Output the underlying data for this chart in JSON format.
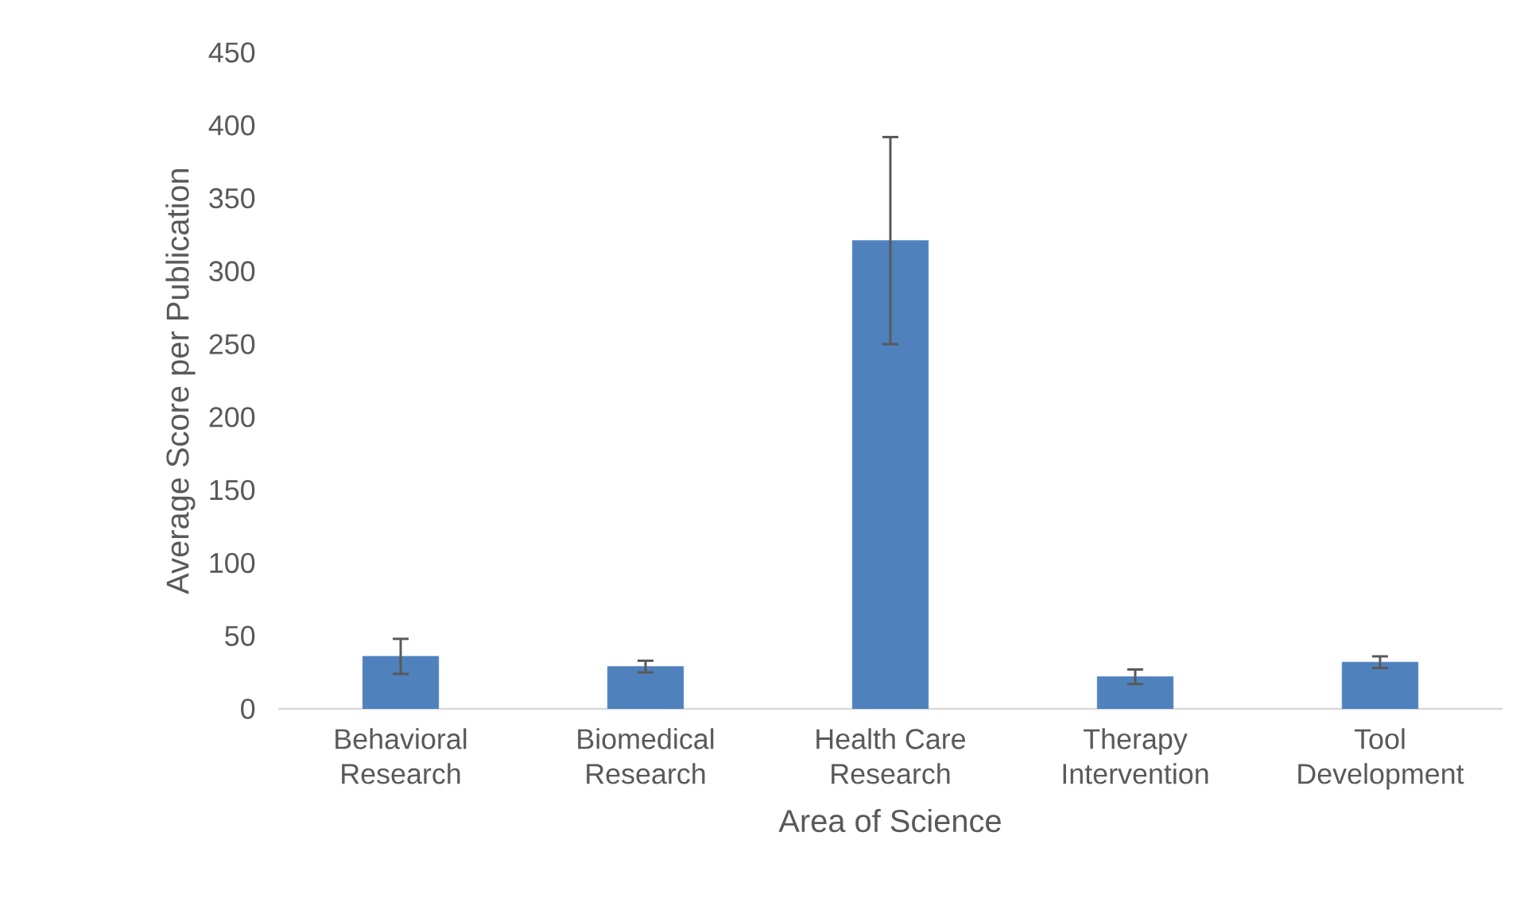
{
  "chart_data": {
    "type": "bar",
    "xlabel": "Area of Science",
    "ylabel": "Average Score per Publication",
    "categories": [
      "Behavioral Research",
      "Biomedical Research",
      "Health Care Research",
      "Therapy Intervention",
      "Tool Development"
    ],
    "values": [
      36,
      29,
      321,
      22,
      32
    ],
    "errors": [
      12,
      4,
      71,
      5,
      4
    ],
    "color": "#4f81bd",
    "ylim": [
      0,
      450
    ],
    "yticks": [
      0,
      50,
      100,
      150,
      200,
      250,
      300,
      350,
      400,
      450
    ]
  }
}
